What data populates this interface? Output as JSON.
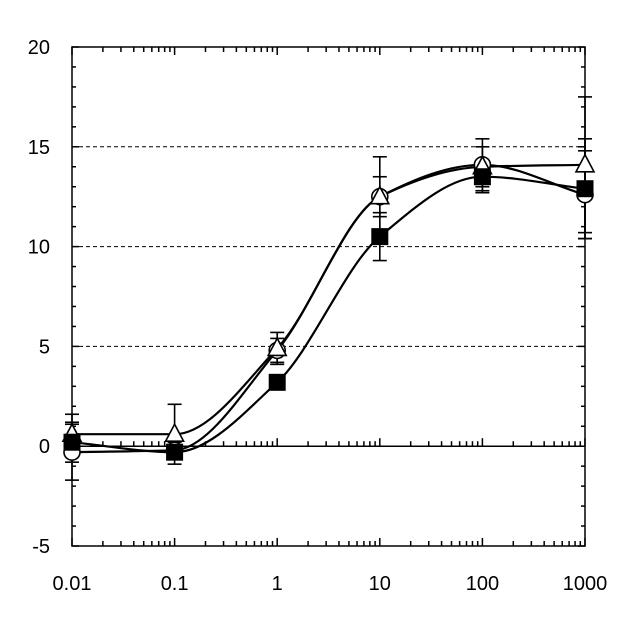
{
  "chart_data": {
    "type": "line",
    "title": "",
    "xlabel": "",
    "ylabel": "",
    "x_scale": "log",
    "xlim": [
      0.01,
      1000
    ],
    "ylim": [
      -5,
      20
    ],
    "x": [
      0.01,
      0.1,
      1,
      10,
      100,
      1000
    ],
    "x_tick_labels": [
      "0.01",
      "0.1",
      "1",
      "10",
      "100",
      "1000"
    ],
    "y_ticks": [
      -5,
      0,
      5,
      10,
      15,
      20
    ],
    "y_tick_labels": [
      "-5",
      "0",
      "5",
      "10",
      "15",
      "20"
    ],
    "dashed_gridlines_y": [
      5,
      10,
      15
    ],
    "legend": "none",
    "series": [
      {
        "name": "open-circle",
        "marker": "circle-open",
        "values": [
          -0.3,
          -0.2,
          4.8,
          12.5,
          14.1,
          12.6
        ],
        "errors": [
          1.4,
          0.4,
          0.6,
          1.0,
          1.3,
          2.2
        ]
      },
      {
        "name": "open-triangle",
        "marker": "triangle-open",
        "values": [
          0.6,
          0.6,
          4.9,
          12.5,
          14.0,
          14.1
        ],
        "errors": [
          1.0,
          1.5,
          0.8,
          2.0,
          1.0,
          3.4
        ]
      },
      {
        "name": "filled-square",
        "marker": "square-filled",
        "values": [
          0.2,
          -0.3,
          3.2,
          10.5,
          13.5,
          12.9
        ],
        "errors": [
          1.0,
          0.3,
          0.3,
          1.2,
          0.8,
          2.5
        ]
      }
    ]
  },
  "colors": {
    "ink": "#000000",
    "background": "#ffffff"
  }
}
